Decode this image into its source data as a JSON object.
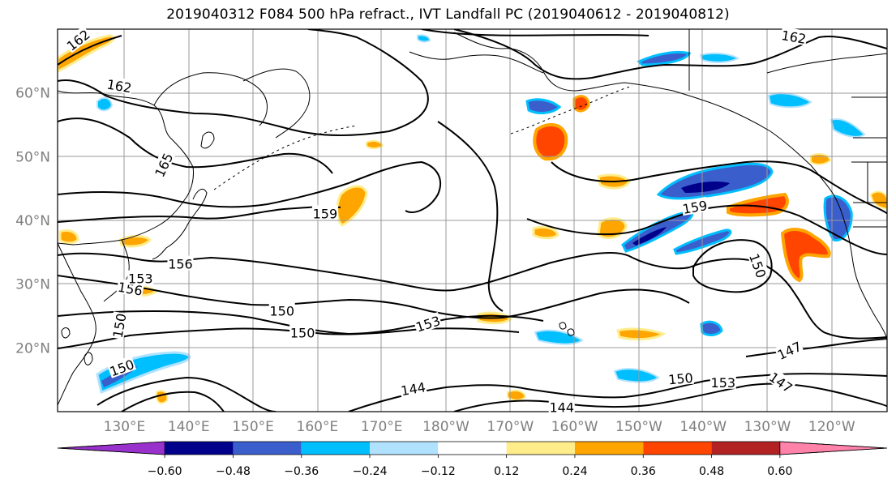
{
  "title": "2019040312 F084 500 hPa refract., IVT Landfall PC (2019040612 - 2019040812)",
  "map": {
    "lat_labels": [
      {
        "text": "60°N",
        "lat": 60
      },
      {
        "text": "50°N",
        "lat": 50
      },
      {
        "text": "40°N",
        "lat": 40
      },
      {
        "text": "30°N",
        "lat": 30
      },
      {
        "text": "20°N",
        "lat": 20
      }
    ],
    "lon_labels": [
      {
        "text": "130°E",
        "lon": 130
      },
      {
        "text": "140°E",
        "lon": 140
      },
      {
        "text": "150°E",
        "lon": 150
      },
      {
        "text": "160°E",
        "lon": 160
      },
      {
        "text": "170°E",
        "lon": 170
      },
      {
        "text": "180°W",
        "lon": 180
      },
      {
        "text": "170°W",
        "lon": 190
      },
      {
        "text": "160°W",
        "lon": 200
      },
      {
        "text": "150°W",
        "lon": 210
      },
      {
        "text": "140°W",
        "lon": 220
      },
      {
        "text": "130°W",
        "lon": 230
      },
      {
        "text": "120°W",
        "lon": 240
      }
    ],
    "contour_labels": [
      {
        "text": "162",
        "lon": 122.8,
        "lat": 68.3,
        "rot": -38
      },
      {
        "text": "162",
        "lon": 129.2,
        "lat": 61.1,
        "rot": 10
      },
      {
        "text": "162",
        "lon": 234.1,
        "lat": 68.8,
        "rot": 10
      },
      {
        "text": "165",
        "lon": 136.1,
        "lat": 48.7,
        "rot": -65
      },
      {
        "text": "159",
        "lon": 161.2,
        "lat": 41.1,
        "rot": 0
      },
      {
        "text": "159",
        "lon": 218.7,
        "lat": 42.1,
        "rot": -10
      },
      {
        "text": "156",
        "lon": 138.7,
        "lat": 33.2,
        "rot": 0
      },
      {
        "text": "156",
        "lon": 130.9,
        "lat": 29.3,
        "rot": 10
      },
      {
        "text": "153",
        "lon": 132.5,
        "lat": 30.9,
        "rot": 0
      },
      {
        "text": "153",
        "lon": 177.2,
        "lat": 23.8,
        "rot": -18
      },
      {
        "text": "153",
        "lon": 223.1,
        "lat": 14.6,
        "rot": 0
      },
      {
        "text": "150",
        "lon": 154.5,
        "lat": 25.8,
        "rot": 0
      },
      {
        "text": "150",
        "lon": 157.7,
        "lat": 22.4,
        "rot": 0
      },
      {
        "text": "150",
        "lon": 129.2,
        "lat": 23.5,
        "rot": -80
      },
      {
        "text": "150",
        "lon": 129.6,
        "lat": 16.9,
        "rot": -20
      },
      {
        "text": "150",
        "lon": 216.5,
        "lat": 15.2,
        "rot": -5
      },
      {
        "text": "150",
        "lon": 228.5,
        "lat": 32.9,
        "rot": 70
      },
      {
        "text": "147",
        "lon": 233.4,
        "lat": 19.6,
        "rot": -25
      },
      {
        "text": "147",
        "lon": 232.1,
        "lat": 14.6,
        "rot": 35
      },
      {
        "text": "144",
        "lon": 174.9,
        "lat": 13.6,
        "rot": -10
      },
      {
        "text": "144",
        "lon": 198.0,
        "lat": 10.7,
        "rot": 0
      }
    ]
  },
  "colorbar": {
    "tick_labels": [
      "−0.60",
      "−0.48",
      "−0.36",
      "−0.24",
      "−0.12",
      "0.12",
      "0.24",
      "0.36",
      "0.48",
      "0.60"
    ],
    "colors": {
      "under": "#9932cc",
      "bins": [
        "#00008b",
        "#3a5fcd",
        "#00bfff",
        "#b0e2ff",
        "#ffffff",
        "#ffec8b",
        "#ffa500",
        "#ff4500",
        "#b22222"
      ],
      "over": "#ff82ab"
    }
  }
}
